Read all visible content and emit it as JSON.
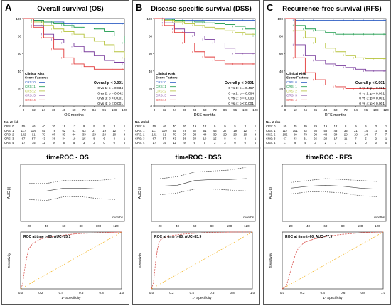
{
  "panels": [
    {
      "letter": "A",
      "title": "Overall survival (OS)",
      "km": {
        "xlabel": "OS months",
        "xticks": [
          0,
          12,
          24,
          36,
          48,
          60,
          72,
          84,
          96,
          108,
          120
        ],
        "yticks": [
          "0",
          "20",
          "40",
          "60",
          "80",
          "100"
        ],
        "legend_title": [
          "Clinical Risk",
          "Score Factors:"
        ],
        "legend": [
          "CRS: 0",
          "CRS: 1",
          "CRS: 2",
          "CRS: 3",
          "CRS: 4"
        ],
        "stats": [
          "Overall p < 0.001",
          "0 vs 1: p = 0.834",
          "0 vs 2: p = 0.042",
          "0 vs 3: p < 0.001",
          "0 vs 4: p < 0.001"
        ],
        "risk_header": "No. at risk",
        "risk_rows": [
          {
            "label": "CRS: 0",
            "values": [
              55,
              46,
              40,
              30,
              19,
              12,
              9,
              9,
              5,
              3,
              1
            ]
          },
          {
            "label": "CRS: 1",
            "values": [
              117,
              109,
              92,
              78,
              62,
              51,
              43,
              27,
              19,
              12,
              7
            ]
          },
          {
            "label": "CRS: 2",
            "values": [
              102,
              91,
              78,
              67,
              55,
              44,
              35,
              25,
              20,
              10,
              9
            ]
          },
          {
            "label": "CRS: 3",
            "values": [
              67,
              57,
              43,
              36,
              34,
              19,
              15,
              8,
              6,
              3,
              1
            ]
          },
          {
            "label": "CRS: 4",
            "values": [
              17,
              15,
              12,
              9,
              6,
              5,
              3,
              3,
              0,
              0,
              0
            ]
          }
        ]
      },
      "timeroc": {
        "title": "timeROC - OS",
        "ylabel": "AUC (t)",
        "xlabel": "months",
        "xticks": [
          "20",
          "40",
          "60",
          "80",
          "100",
          "120"
        ],
        "auc": [
          72,
          72,
          75,
          75,
          74,
          74
        ],
        "upper": [
          80,
          80,
          83,
          83,
          83,
          85
        ],
        "lower": [
          63,
          62,
          66,
          66,
          64,
          63
        ]
      },
      "roc": {
        "label": "ROC at time t=60, AUC=75.1",
        "ylabel": "Sensitivity",
        "xlabel": "1- Specificity",
        "xticks": [
          "0.0",
          "0.2",
          "0.4",
          "0.6",
          "0.8",
          "1.0"
        ],
        "points": [
          [
            0,
            0
          ],
          [
            0.02,
            0.08
          ],
          [
            0.04,
            0.35
          ],
          [
            0.06,
            0.55
          ],
          [
            0.08,
            0.7
          ],
          [
            0.12,
            0.8
          ],
          [
            0.2,
            0.88
          ],
          [
            0.35,
            0.93
          ],
          [
            0.55,
            0.97
          ],
          [
            0.8,
            0.99
          ],
          [
            1,
            1
          ]
        ]
      }
    },
    {
      "letter": "B",
      "title": "Disease-specific survival (DSS)",
      "km": {
        "xlabel": "DSS months",
        "xticks": [
          0,
          12,
          24,
          36,
          48,
          60,
          72,
          84,
          96,
          108,
          120
        ],
        "yticks": [
          "0",
          "20",
          "40",
          "60",
          "80",
          "100"
        ],
        "legend_title": [
          "Clinical Risk",
          "Score Factors:"
        ],
        "legend": [
          "CRS: 0",
          "CRS: 1",
          "CRS: 2",
          "CRS: 3",
          "CRS: 4"
        ],
        "stats": [
          "Overall p < 0.001",
          "0 vs 1: p = 0.467",
          "0 vs 2: p = 0.084",
          "0 vs 3: p = 0.003",
          "0 vs 4: p < 0.001"
        ],
        "risk_header": "No. at risk",
        "risk_rows": [
          {
            "label": "CRS: 0",
            "values": [
              55,
              46,
              40,
              30,
              19,
              12,
              9,
              9,
              5,
              3,
              1
            ]
          },
          {
            "label": "CRS: 1",
            "values": [
              117,
              109,
              92,
              78,
              62,
              51,
              43,
              27,
              19,
              12,
              7
            ]
          },
          {
            "label": "CRS: 2",
            "values": [
              102,
              91,
              78,
              67,
              55,
              44,
              35,
              25,
              20,
              10,
              9
            ]
          },
          {
            "label": "CRS: 3",
            "values": [
              67,
              57,
              43,
              36,
              34,
              19,
              15,
              8,
              6,
              3,
              1
            ]
          },
          {
            "label": "CRS: 4",
            "values": [
              17,
              15,
              12,
              9,
              6,
              5,
              3,
              3,
              0,
              0,
              0
            ]
          }
        ]
      },
      "timeroc": {
        "title": "timeROC - DSS",
        "ylabel": "AUC (t)",
        "xlabel": "months",
        "xticks": [
          "20",
          "40",
          "60",
          "80",
          "100",
          "120"
        ],
        "auc": [
          77,
          78,
          83,
          84,
          84,
          85
        ],
        "upper": [
          85,
          87,
          92,
          93,
          94,
          97
        ],
        "lower": [
          68,
          70,
          74,
          74,
          73,
          72
        ]
      },
      "roc": {
        "label": "ROC at time t=60, AUC=83.9",
        "ylabel": "Sensitivity",
        "xlabel": "1- Specificity",
        "xticks": [
          "0.0",
          "0.2",
          "0.4",
          "0.6",
          "0.8",
          "1.0"
        ],
        "points": [
          [
            0,
            0
          ],
          [
            0.02,
            0.1
          ],
          [
            0.04,
            0.45
          ],
          [
            0.06,
            0.7
          ],
          [
            0.08,
            0.85
          ],
          [
            0.12,
            0.9
          ],
          [
            0.2,
            0.94
          ],
          [
            0.35,
            0.97
          ],
          [
            0.55,
            0.99
          ],
          [
            0.8,
            1
          ],
          [
            1,
            1
          ]
        ]
      }
    },
    {
      "letter": "C",
      "title": "Recurrence-free survival (RFS)",
      "km": {
        "xlabel": "RFS months",
        "xticks": [
          0,
          12,
          24,
          36,
          48,
          60,
          72,
          84,
          96,
          108,
          120
        ],
        "yticks": [
          "0",
          "20",
          "40",
          "60",
          "80",
          "100"
        ],
        "legend_title": [
          "Clinical Risk",
          "Score Factors:"
        ],
        "legend": [
          "CRS: 0",
          "CRS: 1",
          "CRS: 2",
          "CRS: 3",
          "CRS: 4"
        ],
        "stats": [
          "Overall p < 0.001",
          "0 vs 1: p = 0.021",
          "0 vs 2: p < 0.001",
          "0 vs 3: p < 0.001",
          "0 vs 4: p < 0.001"
        ],
        "risk_header": "No. at risk",
        "risk_rows": [
          {
            "label": "CRS: 0",
            "values": [
              55,
              45,
              39,
              29,
              19,
              12,
              8,
              9,
              5,
              3,
              1
            ]
          },
          {
            "label": "CRS: 1",
            "values": [
              117,
              101,
              83,
              66,
              53,
              43,
              35,
              21,
              14,
              10,
              5
            ]
          },
          {
            "label": "CRS: 2",
            "values": [
              102,
              86,
              73,
              58,
              45,
              34,
              28,
              18,
              14,
              7,
              7
            ]
          },
          {
            "label": "CRS: 3",
            "values": [
              67,
              43,
              31,
              26,
              23,
              17,
              11,
              7,
              5,
              2,
              1
            ]
          },
          {
            "label": "CRS: 4",
            "values": [
              17,
              9,
              4,
              3,
              2,
              1,
              1,
              1,
              0,
              0,
              0
            ]
          }
        ]
      },
      "timeroc": {
        "title": "timeROC - RFS",
        "ylabel": "AUC (t)",
        "xlabel": "months",
        "xticks": [
          "20",
          "40",
          "60",
          "80",
          "100",
          "120"
        ],
        "auc": [
          75,
          77,
          78,
          77,
          75,
          74
        ],
        "upper": [
          81,
          83,
          85,
          84,
          83,
          82
        ],
        "lower": [
          69,
          71,
          71,
          70,
          67,
          66
        ]
      },
      "roc": {
        "label": "ROC at time t=60, AUC=77.9",
        "ylabel": "Sensitivity",
        "xlabel": "1- Specificity",
        "xticks": [
          "0.0",
          "0.2",
          "0.4",
          "0.6",
          "0.8",
          "1.0"
        ],
        "points": [
          [
            0,
            0
          ],
          [
            0.04,
            0.05
          ],
          [
            0.08,
            0.3
          ],
          [
            0.12,
            0.55
          ],
          [
            0.16,
            0.72
          ],
          [
            0.22,
            0.82
          ],
          [
            0.32,
            0.88
          ],
          [
            0.45,
            0.93
          ],
          [
            0.6,
            0.96
          ],
          [
            0.8,
            0.99
          ],
          [
            1,
            1
          ]
        ]
      }
    }
  ],
  "colors": {
    "crs0": "#2f5fc4",
    "crs1": "#1a9a4a",
    "crs2": "#b5c23a",
    "crs3": "#7b3f9e",
    "crs4": "#e23a3a",
    "roc": "#d9534f",
    "roc_ref": "#f2a900",
    "timeroc": "#444444"
  },
  "chart_data": [
    {
      "type": "line",
      "title": "Overall survival (OS)",
      "xlabel": "OS months",
      "xlim": [
        0,
        120
      ],
      "ylim": [
        0,
        100
      ],
      "series": [
        {
          "name": "CRS: 0",
          "x": [
            0,
            12,
            24,
            36,
            48,
            60,
            72,
            84,
            96,
            108,
            120
          ],
          "y": [
            100,
            98,
            96,
            96,
            94,
            94,
            94,
            94,
            94,
            94,
            94
          ]
        },
        {
          "name": "CRS: 1",
          "x": [
            0,
            12,
            24,
            36,
            48,
            60,
            72,
            84,
            96,
            108,
            120
          ],
          "y": [
            100,
            98,
            96,
            94,
            92,
            90,
            89,
            88,
            85,
            80,
            72
          ]
        },
        {
          "name": "CRS: 2",
          "x": [
            0,
            12,
            24,
            36,
            48,
            60,
            72,
            84,
            96,
            108,
            120
          ],
          "y": [
            100,
            96,
            92,
            88,
            85,
            82,
            78,
            74,
            70,
            62,
            55
          ]
        },
        {
          "name": "CRS: 3",
          "x": [
            0,
            12,
            24,
            36,
            48,
            60,
            72,
            84,
            96,
            108,
            120
          ],
          "y": [
            100,
            92,
            82,
            76,
            72,
            68,
            62,
            58,
            52,
            50,
            48
          ]
        },
        {
          "name": "CRS: 4",
          "x": [
            0,
            12,
            24,
            36,
            48,
            60,
            72,
            84,
            96,
            108,
            120
          ],
          "y": [
            100,
            90,
            78,
            65,
            55,
            48,
            45,
            42,
            42,
            42,
            42
          ]
        }
      ]
    },
    {
      "type": "line",
      "title": "Disease-specific survival (DSS)",
      "xlabel": "DSS months",
      "xlim": [
        0,
        120
      ],
      "ylim": [
        0,
        100
      ],
      "series": [
        {
          "name": "CRS: 0",
          "x": [
            0,
            12,
            24,
            36,
            48,
            60,
            72,
            84,
            96,
            108,
            120
          ],
          "y": [
            100,
            100,
            98,
            98,
            98,
            98,
            98,
            98,
            98,
            98,
            98
          ]
        },
        {
          "name": "CRS: 1",
          "x": [
            0,
            12,
            24,
            36,
            48,
            60,
            72,
            84,
            96,
            108,
            120
          ],
          "y": [
            100,
            99,
            98,
            97,
            96,
            95,
            94,
            93,
            91,
            88,
            80
          ]
        },
        {
          "name": "CRS: 2",
          "x": [
            0,
            12,
            24,
            36,
            48,
            60,
            72,
            84,
            96,
            108,
            120
          ],
          "y": [
            100,
            98,
            96,
            94,
            92,
            90,
            88,
            86,
            84,
            82,
            82
          ]
        },
        {
          "name": "CRS: 3",
          "x": [
            0,
            12,
            24,
            36,
            48,
            60,
            72,
            84,
            96,
            108,
            120
          ],
          "y": [
            100,
            95,
            88,
            84,
            80,
            76,
            72,
            66,
            60,
            60,
            60
          ]
        },
        {
          "name": "CRS: 4",
          "x": [
            0,
            12,
            24,
            36,
            48,
            60,
            72,
            84,
            96,
            108,
            120
          ],
          "y": [
            100,
            92,
            84,
            72,
            62,
            56,
            52,
            48,
            48,
            48,
            48
          ]
        }
      ]
    },
    {
      "type": "line",
      "title": "Recurrence-free survival (RFS)",
      "xlabel": "RFS months",
      "xlim": [
        0,
        120
      ],
      "ylim": [
        0,
        100
      ],
      "series": [
        {
          "name": "CRS: 0",
          "x": [
            0,
            12,
            24,
            36,
            48,
            60,
            72,
            84,
            96,
            108,
            120
          ],
          "y": [
            100,
            98,
            98,
            98,
            98,
            98,
            98,
            98,
            98,
            98,
            98
          ]
        },
        {
          "name": "CRS: 1",
          "x": [
            0,
            12,
            24,
            36,
            48,
            60,
            72,
            84,
            96,
            108,
            120
          ],
          "y": [
            100,
            92,
            88,
            86,
            84,
            82,
            82,
            82,
            82,
            82,
            82
          ]
        },
        {
          "name": "CRS: 2",
          "x": [
            0,
            12,
            24,
            36,
            48,
            60,
            72,
            84,
            96,
            108,
            120
          ],
          "y": [
            100,
            86,
            78,
            72,
            66,
            62,
            58,
            55,
            54,
            54,
            54
          ]
        },
        {
          "name": "CRS: 3",
          "x": [
            0,
            12,
            24,
            36,
            48,
            60,
            72,
            84,
            96,
            108,
            120
          ],
          "y": [
            100,
            70,
            58,
            52,
            48,
            46,
            44,
            42,
            40,
            40,
            40
          ]
        },
        {
          "name": "CRS: 4",
          "x": [
            0,
            12,
            24,
            36,
            48,
            60,
            72,
            84,
            96,
            108,
            120
          ],
          "y": [
            100,
            55,
            38,
            30,
            24,
            22,
            20,
            20,
            20,
            20,
            20
          ]
        }
      ]
    }
  ]
}
